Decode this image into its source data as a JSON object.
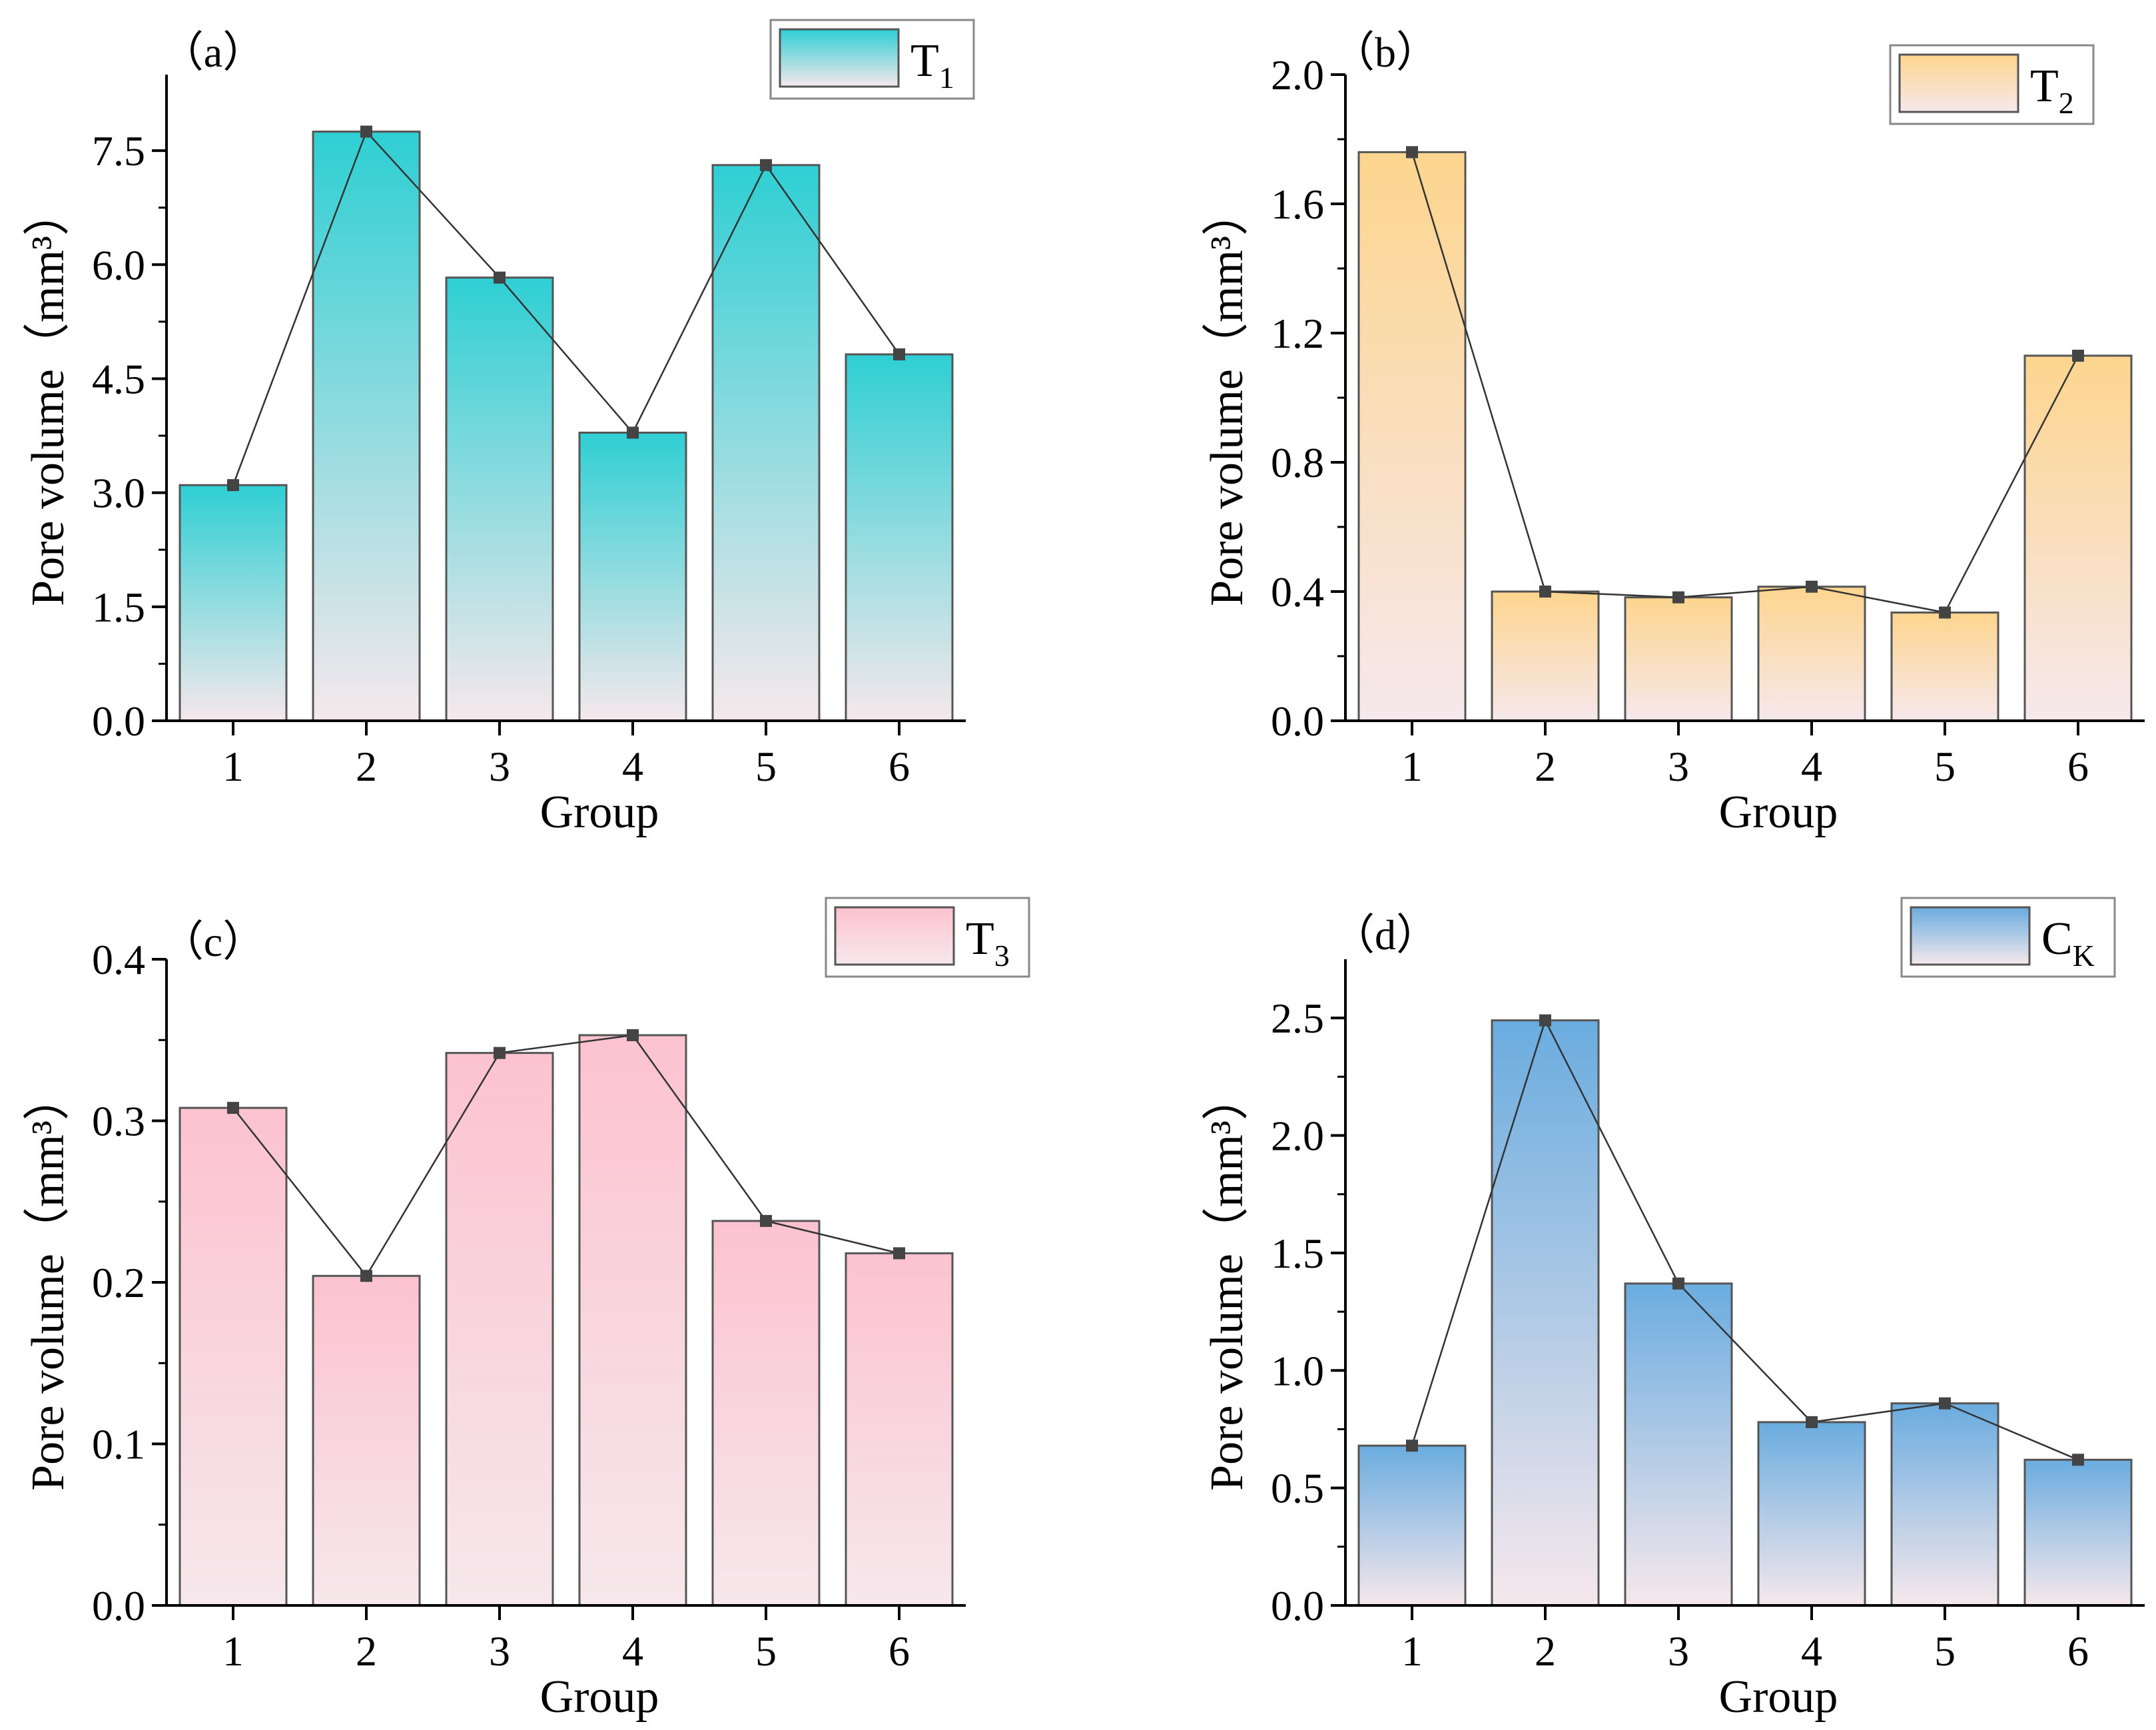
{
  "figure": {
    "chart_data": [
      {
        "type": "bar",
        "panel_label": "（a）",
        "legend_base": "T",
        "legend_sub": "1",
        "title": "",
        "xlabel": "Group",
        "ylabel": "Pore volume（mm³）",
        "categories": [
          "1",
          "2",
          "3",
          "4",
          "5",
          "6"
        ],
        "values": [
          3.1,
          7.75,
          5.83,
          3.79,
          7.31,
          4.82
        ],
        "ylim": [
          0,
          8.5
        ],
        "yticks": [
          0.0,
          1.5,
          3.0,
          4.5,
          6.0,
          7.5
        ],
        "ytick_labels": [
          "0.0",
          "1.5",
          "3.0",
          "4.5",
          "6.0",
          "7.5"
        ],
        "bar_color_top": "#2ecfd3",
        "bar_color_bottom": "#f6e8ec",
        "line_overlay": true,
        "legend_position": "top-right",
        "grid": false
      },
      {
        "type": "bar",
        "panel_label": "（b）",
        "legend_base": "T",
        "legend_sub": "2",
        "title": "",
        "xlabel": "Group",
        "ylabel": "Pore volume（mm³）",
        "categories": [
          "1",
          "2",
          "3",
          "4",
          "5",
          "6"
        ],
        "values": [
          1.76,
          0.4,
          0.382,
          0.415,
          0.335,
          1.13
        ],
        "ylim": [
          0,
          2.0
        ],
        "yticks": [
          0.0,
          0.4,
          0.8,
          1.2,
          1.6,
          2.0
        ],
        "ytick_labels": [
          "0.0",
          "0.4",
          "0.8",
          "1.2",
          "1.6",
          "2.0"
        ],
        "bar_color_top": "#fdd58e",
        "bar_color_bottom": "#f6e8ec",
        "line_overlay": true,
        "legend_position": "top-right",
        "grid": false
      },
      {
        "type": "bar",
        "panel_label": "（c）",
        "legend_base": "T",
        "legend_sub": "3",
        "title": "",
        "xlabel": "Group",
        "ylabel": "Pore volume（mm³）",
        "categories": [
          "1",
          "2",
          "3",
          "4",
          "5",
          "6"
        ],
        "values": [
          0.308,
          0.204,
          0.342,
          0.353,
          0.238,
          0.218
        ],
        "ylim": [
          0,
          0.4
        ],
        "yticks": [
          0.0,
          0.1,
          0.2,
          0.3,
          0.4
        ],
        "ytick_labels": [
          "0.0",
          "0.1",
          "0.2",
          "0.3",
          "0.4"
        ],
        "bar_color_top": "#fcc2cf",
        "bar_color_bottom": "#f6e8ec",
        "line_overlay": true,
        "legend_position": "top-right",
        "grid": false
      },
      {
        "type": "bar",
        "panel_label": "（d）",
        "legend_base": "C",
        "legend_sub": "K",
        "title": "",
        "xlabel": "Group",
        "ylabel": "Pore volume（mm³）",
        "categories": [
          "1",
          "2",
          "3",
          "4",
          "5",
          "6"
        ],
        "values": [
          0.68,
          2.49,
          1.37,
          0.78,
          0.86,
          0.62
        ],
        "ylim": [
          0,
          2.75
        ],
        "yticks": [
          0.0,
          0.5,
          1.0,
          1.5,
          2.0,
          2.5
        ],
        "ytick_labels": [
          "0.0",
          "0.5",
          "1.0",
          "1.5",
          "2.0",
          "2.5"
        ],
        "bar_color_top": "#6aacdf",
        "bar_color_bottom": "#f6e8ec",
        "line_overlay": true,
        "legend_position": "top-right",
        "grid": false
      }
    ]
  }
}
